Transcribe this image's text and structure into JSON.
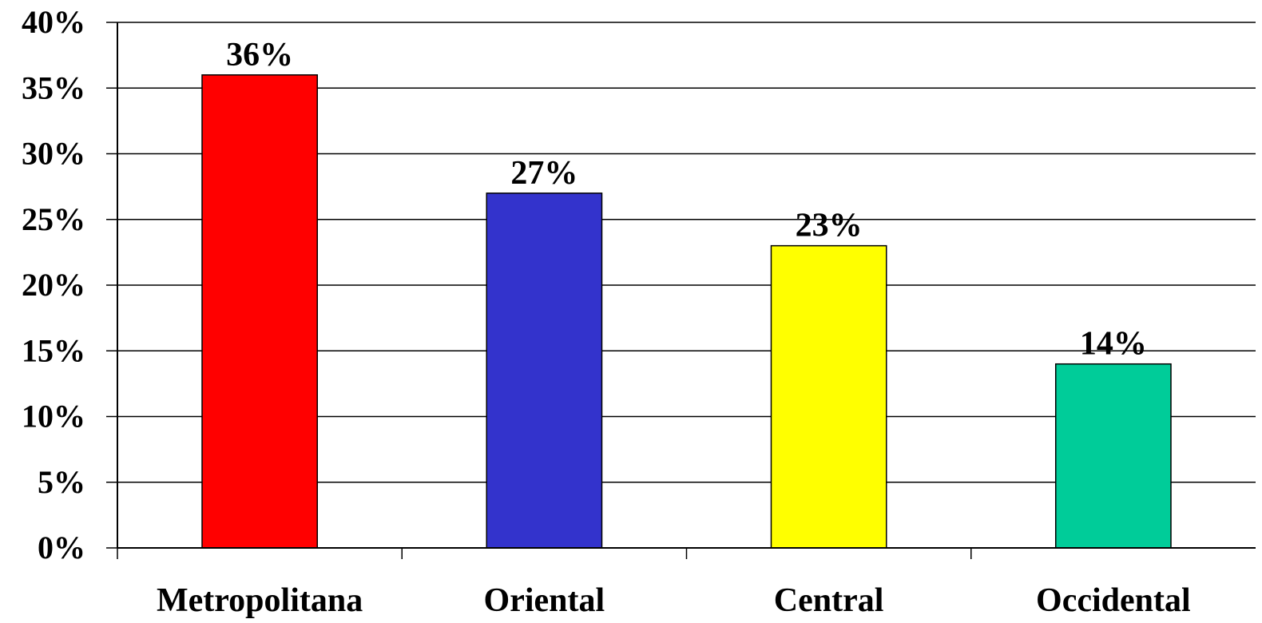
{
  "chart_data": {
    "type": "bar",
    "title": "",
    "xlabel": "",
    "ylabel": "",
    "categories": [
      "Metropolitana",
      "Oriental",
      "Central",
      "Occidental"
    ],
    "values": [
      36,
      27,
      23,
      14
    ],
    "data_labels": [
      "36%",
      "27%",
      "23%",
      "14%"
    ],
    "bar_colors": [
      "#FF0000",
      "#3333CC",
      "#FFFF00",
      "#00CC99"
    ],
    "ylim": [
      0,
      40
    ],
    "y_ticks": [
      0,
      5,
      10,
      15,
      20,
      25,
      30,
      35,
      40
    ],
    "y_tick_labels": [
      "0%",
      "5%",
      "10%",
      "15%",
      "20%",
      "25%",
      "30%",
      "35%",
      "40%"
    ],
    "grid": true,
    "legend": "none"
  }
}
